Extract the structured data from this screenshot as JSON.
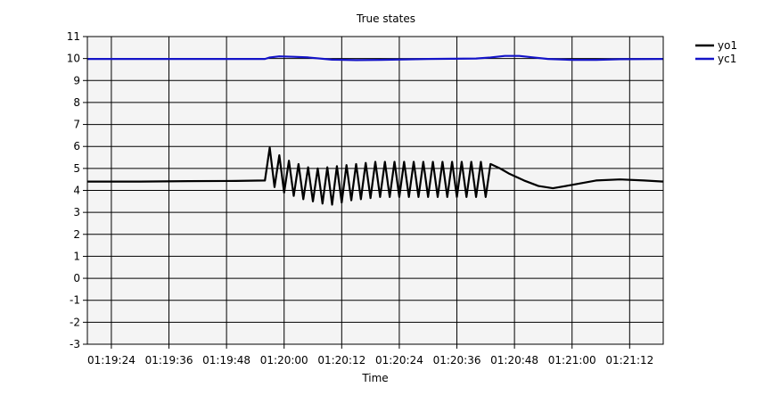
{
  "chart_data": {
    "type": "line",
    "title": "True states",
    "xlabel": "Time",
    "ylabel": "",
    "xlim": [
      "01:19:19",
      "01:21:19"
    ],
    "ylim": [
      -3,
      11
    ],
    "grid": true,
    "legend_position": "top-right",
    "x_ticks": [
      "01:19:24",
      "01:19:36",
      "01:19:48",
      "01:20:00",
      "01:20:12",
      "01:20:24",
      "01:20:36",
      "01:20:48",
      "01:21:00",
      "01:21:12"
    ],
    "y_ticks": [
      11,
      10,
      9,
      8,
      7,
      6,
      5,
      4,
      3,
      2,
      1,
      0,
      -1,
      -2,
      -3
    ],
    "series": [
      {
        "name": "yo1",
        "color": "#000000",
        "points": [
          [
            "01:19:19",
            4.4
          ],
          [
            "01:19:30",
            4.4
          ],
          [
            "01:19:40",
            4.42
          ],
          [
            "01:19:50",
            4.43
          ],
          [
            "01:19:56",
            4.45
          ],
          [
            "01:19:57",
            5.95
          ],
          [
            "01:19:58",
            4.15
          ],
          [
            "01:19:59",
            5.6
          ],
          [
            "01:20:00",
            3.9
          ],
          [
            "01:20:01",
            5.35
          ],
          [
            "01:20:02",
            3.75
          ],
          [
            "01:20:03",
            5.2
          ],
          [
            "01:20:04",
            3.6
          ],
          [
            "01:20:05",
            5.05
          ],
          [
            "01:20:06",
            3.5
          ],
          [
            "01:20:07",
            5.0
          ],
          [
            "01:20:08",
            3.4
          ],
          [
            "01:20:09",
            5.05
          ],
          [
            "01:20:10",
            3.35
          ],
          [
            "01:20:11",
            5.1
          ],
          [
            "01:20:12",
            3.45
          ],
          [
            "01:20:13",
            5.15
          ],
          [
            "01:20:14",
            3.55
          ],
          [
            "01:20:15",
            5.2
          ],
          [
            "01:20:16",
            3.6
          ],
          [
            "01:20:17",
            5.25
          ],
          [
            "01:20:18",
            3.65
          ],
          [
            "01:20:19",
            5.3
          ],
          [
            "01:20:20",
            3.7
          ],
          [
            "01:20:21",
            5.3
          ],
          [
            "01:20:22",
            3.7
          ],
          [
            "01:20:23",
            5.3
          ],
          [
            "01:20:24",
            3.7
          ],
          [
            "01:20:25",
            5.3
          ],
          [
            "01:20:26",
            3.7
          ],
          [
            "01:20:27",
            5.3
          ],
          [
            "01:20:28",
            3.7
          ],
          [
            "01:20:29",
            5.3
          ],
          [
            "01:20:30",
            3.7
          ],
          [
            "01:20:31",
            5.3
          ],
          [
            "01:20:32",
            3.7
          ],
          [
            "01:20:33",
            5.3
          ],
          [
            "01:20:34",
            3.7
          ],
          [
            "01:20:35",
            5.3
          ],
          [
            "01:20:36",
            3.7
          ],
          [
            "01:20:37",
            5.3
          ],
          [
            "01:20:38",
            3.7
          ],
          [
            "01:20:39",
            5.3
          ],
          [
            "01:20:40",
            3.7
          ],
          [
            "01:20:41",
            5.3
          ],
          [
            "01:20:42",
            3.7
          ],
          [
            "01:20:43",
            5.2
          ],
          [
            "01:20:45",
            5.0
          ],
          [
            "01:20:47",
            4.75
          ],
          [
            "01:20:50",
            4.45
          ],
          [
            "01:20:53",
            4.2
          ],
          [
            "01:20:56",
            4.1
          ],
          [
            "01:21:00",
            4.25
          ],
          [
            "01:21:05",
            4.45
          ],
          [
            "01:21:10",
            4.5
          ],
          [
            "01:21:15",
            4.45
          ],
          [
            "01:21:19",
            4.4
          ]
        ]
      },
      {
        "name": "yc1",
        "color": "#1414c8",
        "points": [
          [
            "01:19:19",
            9.98
          ],
          [
            "01:19:40",
            9.98
          ],
          [
            "01:19:56",
            9.98
          ],
          [
            "01:19:57",
            10.05
          ],
          [
            "01:19:59",
            10.1
          ],
          [
            "01:20:02",
            10.08
          ],
          [
            "01:20:05",
            10.05
          ],
          [
            "01:20:10",
            9.95
          ],
          [
            "01:20:15",
            9.93
          ],
          [
            "01:20:20",
            9.94
          ],
          [
            "01:20:25",
            9.96
          ],
          [
            "01:20:30",
            9.98
          ],
          [
            "01:20:35",
            9.99
          ],
          [
            "01:20:40",
            10.0
          ],
          [
            "01:20:43",
            10.05
          ],
          [
            "01:20:46",
            10.12
          ],
          [
            "01:20:49",
            10.12
          ],
          [
            "01:20:52",
            10.05
          ],
          [
            "01:20:55",
            9.98
          ],
          [
            "01:21:00",
            9.94
          ],
          [
            "01:21:05",
            9.94
          ],
          [
            "01:21:10",
            9.97
          ],
          [
            "01:21:19",
            9.98
          ]
        ]
      }
    ]
  }
}
